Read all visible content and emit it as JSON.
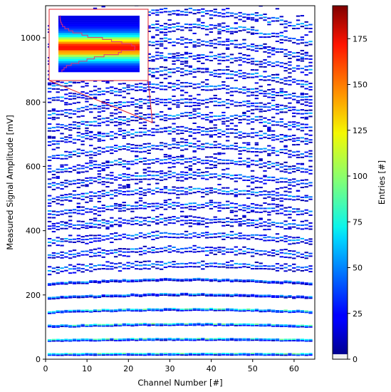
{
  "chart_data": {
    "type": "heatmap",
    "title": "",
    "xlabel": "Channel Number [#]",
    "ylabel": "Measured Signal Amplitude [mV]",
    "xlim": [
      0,
      65
    ],
    "ylim": [
      0,
      1100
    ],
    "x_ticks": [
      0,
      10,
      20,
      30,
      40,
      50,
      60
    ],
    "y_ticks": [
      0,
      200,
      400,
      600,
      800,
      1000
    ],
    "colorbar": {
      "label": "Entries [#]",
      "range": [
        0,
        193
      ],
      "ticks": [
        0,
        25,
        50,
        75,
        100,
        125,
        150,
        175
      ],
      "colormap": "jet"
    },
    "channels": 64,
    "amplitude_bin_mv": 4,
    "band_baselines_mv": [
      15,
      60,
      105,
      150,
      195,
      240,
      285,
      330,
      375,
      420,
      465,
      510,
      555,
      600,
      645,
      690,
      735,
      780,
      825,
      870,
      915,
      960,
      1005,
      1050
    ],
    "band_spread_mv": [
      2,
      3,
      4,
      5,
      6,
      7,
      8,
      9,
      10,
      11,
      12,
      13,
      14,
      15,
      16,
      17,
      18,
      19,
      20,
      21,
      22,
      23,
      24,
      25
    ],
    "channel_gain_curve": "rises from about 0.97 at channel 0 to a maximum near channel 40, then falls to about 0.98 at channel 64",
    "inset": {
      "content": "zoomed view of one channel around 1000 mV",
      "overlay_line_color": "#e0307a"
    },
    "colors": {
      "inset_outline": "#e0202a",
      "low_entries": "#00007f",
      "high_entries": "#7f0000"
    }
  }
}
